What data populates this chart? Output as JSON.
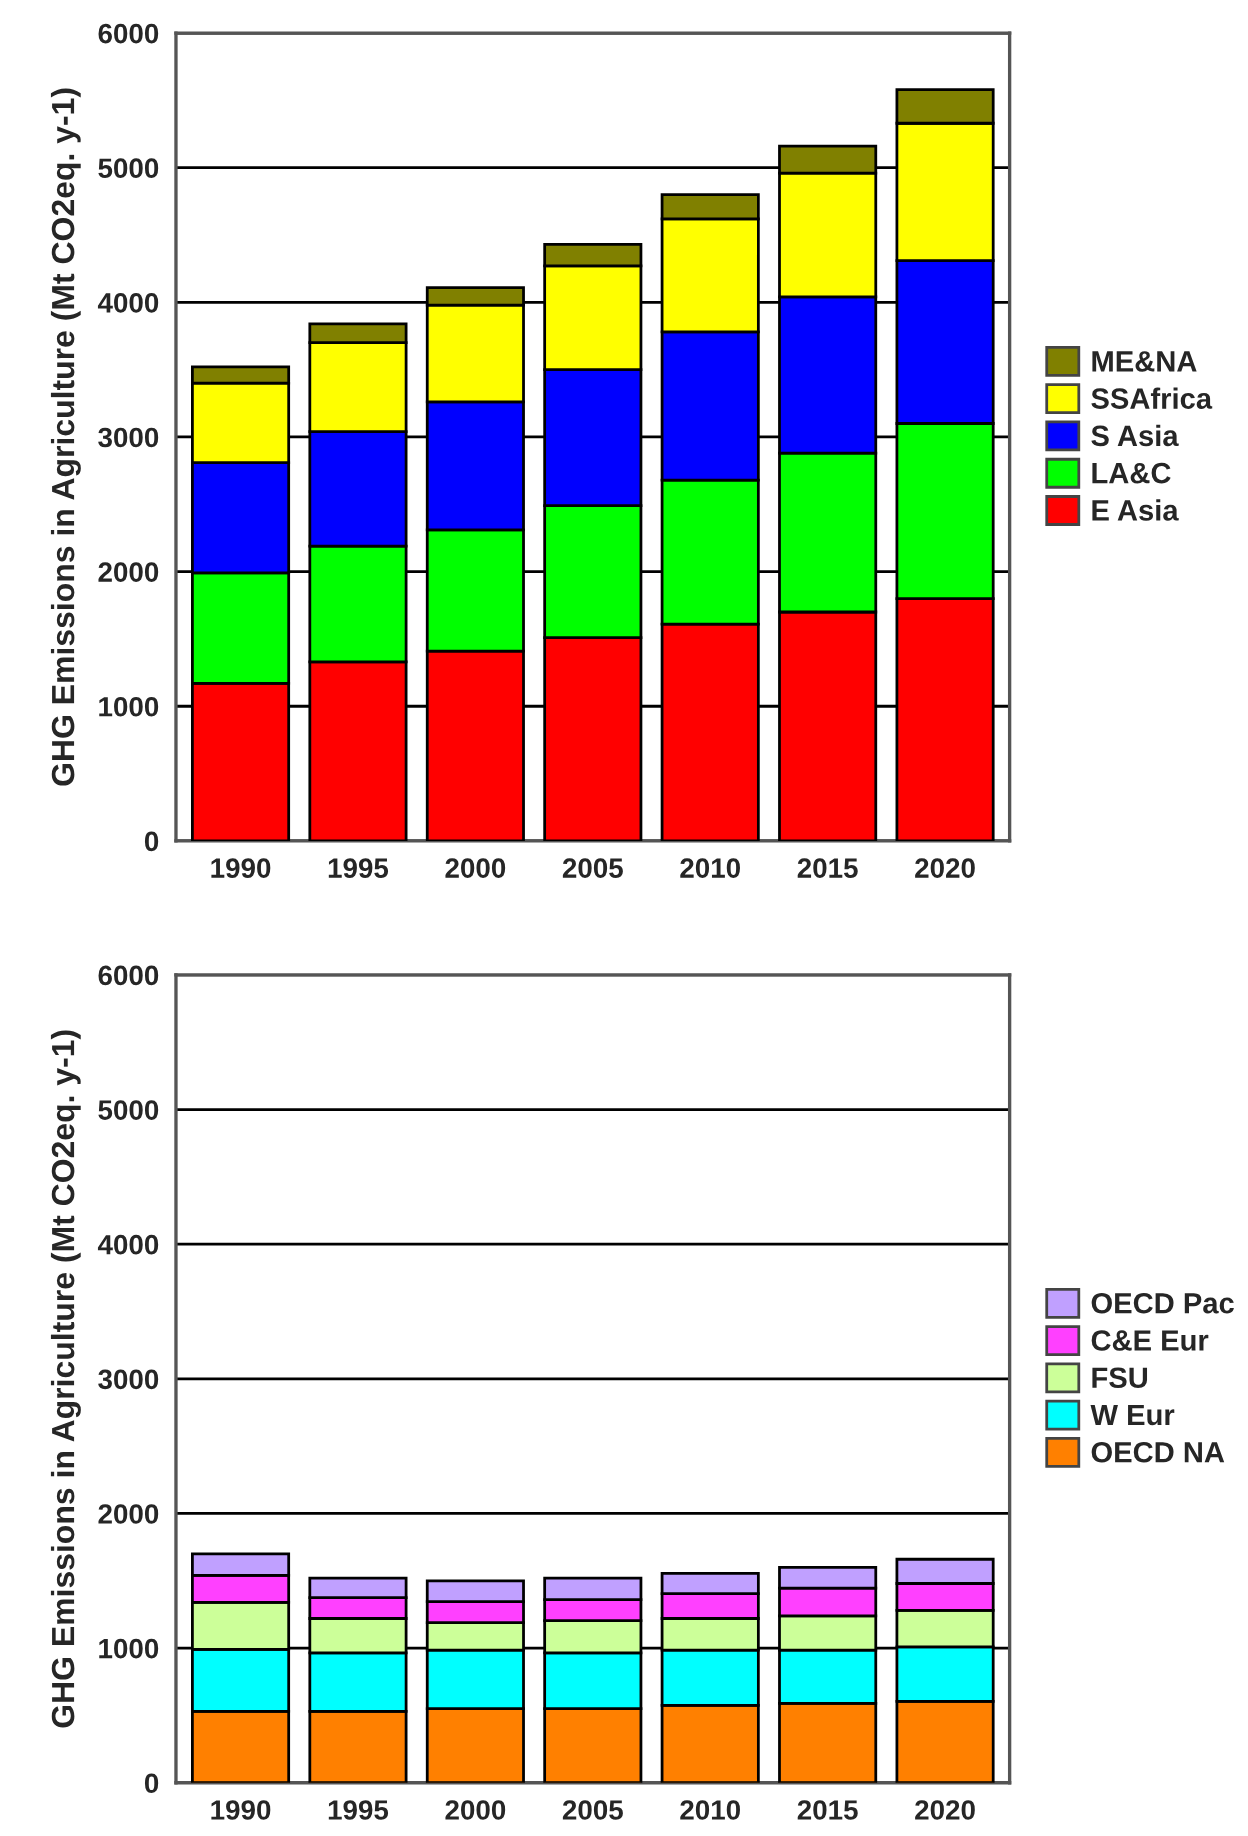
{
  "chart_data": [
    {
      "type": "bar",
      "stacked": true,
      "ylabel": "GHG Emissions in Agriculture (Mt CO2eq. y-1)",
      "categories": [
        "1990",
        "1995",
        "2000",
        "2005",
        "2010",
        "2015",
        "2020"
      ],
      "ylim": [
        0,
        6000
      ],
      "yticks": [
        0,
        1000,
        2000,
        3000,
        4000,
        5000,
        6000
      ],
      "grid": "y",
      "legend": "right",
      "series": [
        {
          "name": "E Asia",
          "color": "#ff0000",
          "values": [
            1170,
            1330,
            1410,
            1510,
            1610,
            1700,
            1800
          ]
        },
        {
          "name": "LA&C",
          "color": "#00ff00",
          "values": [
            820,
            860,
            900,
            980,
            1070,
            1180,
            1300
          ]
        },
        {
          "name": "S Asia",
          "color": "#0000ff",
          "values": [
            820,
            850,
            950,
            1010,
            1100,
            1160,
            1210
          ]
        },
        {
          "name": "SSAfrica",
          "color": "#ffff00",
          "values": [
            590,
            660,
            720,
            770,
            840,
            920,
            1020
          ]
        },
        {
          "name": "ME&NA",
          "color": "#808000",
          "values": [
            120,
            140,
            130,
            160,
            180,
            200,
            250
          ]
        }
      ]
    },
    {
      "type": "bar",
      "stacked": true,
      "ylabel": "GHG Emissions in Agriculture (Mt CO2eq. y-1)",
      "categories": [
        "1990",
        "1995",
        "2000",
        "2005",
        "2010",
        "2015",
        "2020"
      ],
      "ylim": [
        0,
        6000
      ],
      "yticks": [
        0,
        1000,
        2000,
        3000,
        4000,
        5000,
        6000
      ],
      "grid": "y",
      "legend": "right",
      "series": [
        {
          "name": "OECD NA",
          "color": "#ff8000",
          "values": [
            530,
            530,
            550,
            550,
            575,
            590,
            605
          ]
        },
        {
          "name": "W Eur",
          "color": "#00ffff",
          "values": [
            460,
            435,
            435,
            415,
            410,
            395,
            405
          ]
        },
        {
          "name": "FSU",
          "color": "#ccff99",
          "values": [
            350,
            255,
            205,
            240,
            235,
            255,
            270
          ]
        },
        {
          "name": "C&E Eur",
          "color": "#ff40ff",
          "values": [
            200,
            155,
            155,
            155,
            185,
            205,
            200
          ]
        },
        {
          "name": "OECD Pac",
          "color": "#c0a0ff",
          "values": [
            160,
            145,
            155,
            160,
            150,
            155,
            180
          ]
        }
      ]
    }
  ]
}
